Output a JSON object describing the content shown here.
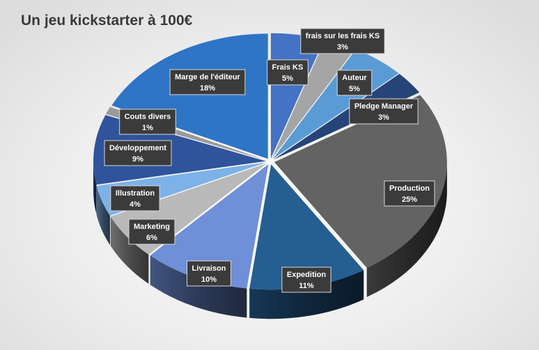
{
  "title": "Un jeu kickstarter à 100€",
  "chart_data": {
    "type": "pie",
    "title": "Un jeu kickstarter à 100€",
    "style": "3d-exploded-tilted",
    "slices": [
      {
        "name": "Frais KS",
        "value": 5,
        "label": "5%",
        "color": "#4472c4"
      },
      {
        "name": "frais sur les frais KS",
        "value": 3,
        "label": "3%",
        "color": "#a5a5a5"
      },
      {
        "name": "Auteur",
        "value": 5,
        "label": "5%",
        "color": "#5b9bd5"
      },
      {
        "name": "Pledge Manager",
        "value": 3,
        "label": "3%",
        "color": "#264478"
      },
      {
        "name": "Production",
        "value": 25,
        "label": "25%",
        "color": "#636363"
      },
      {
        "name": "Expedition",
        "value": 11,
        "label": "11%",
        "color": "#255e91"
      },
      {
        "name": "Livraison",
        "value": 10,
        "label": "10%",
        "color": "#6f8fd8"
      },
      {
        "name": "Marketing",
        "value": 6,
        "label": "6%",
        "color": "#b9b9b9"
      },
      {
        "name": "Illustration",
        "value": 4,
        "label": "4%",
        "color": "#7cb2e8"
      },
      {
        "name": "Développement",
        "value": 9,
        "label": "9%",
        "color": "#2f549c"
      },
      {
        "name": "Couts divers",
        "value": 1,
        "label": "1%",
        "color": "#9a9a9a"
      },
      {
        "name": "Marge de l'éditeur",
        "value": 18,
        "label": "18%",
        "color": "#2e75c6"
      }
    ]
  }
}
